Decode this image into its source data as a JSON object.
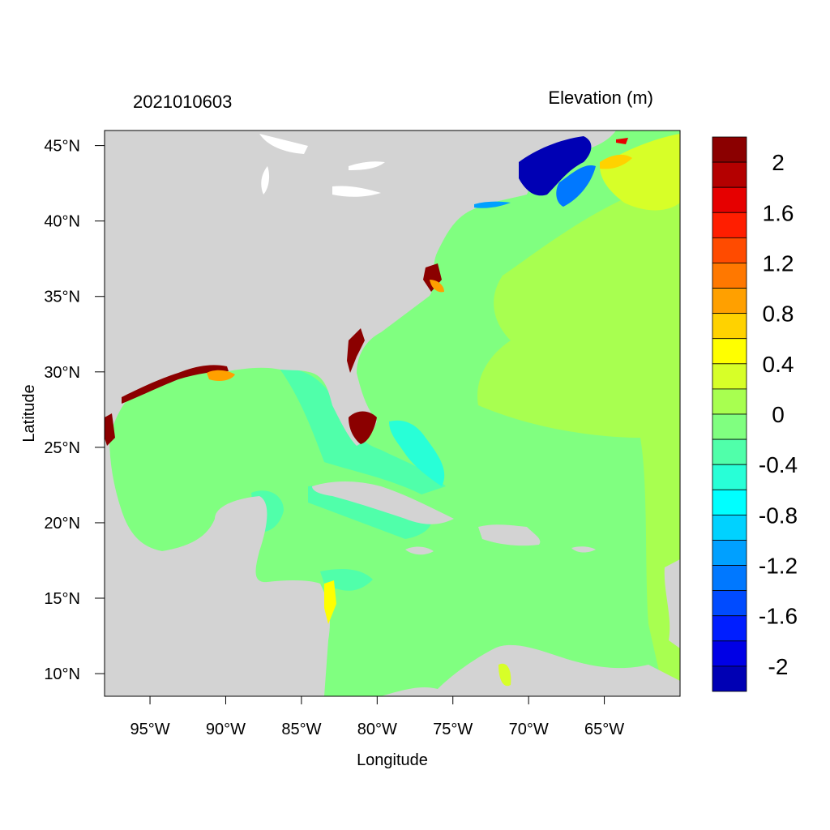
{
  "map": {
    "timestamp": "2021010603",
    "variable_title": "Elevation (m)",
    "xlabel": "Longitude",
    "ylabel": "Latitude",
    "lon_range": [
      -98,
      -60
    ],
    "lat_range": [
      8.5,
      46
    ],
    "x_ticks": [
      "95°W",
      "90°W",
      "85°W",
      "80°W",
      "75°W",
      "70°W",
      "65°W"
    ],
    "y_ticks": [
      "45°N",
      "40°N",
      "35°N",
      "30°N",
      "25°N",
      "20°N",
      "15°N",
      "10°N"
    ],
    "land_color": "#d3d3d3",
    "ocean_base_color": "#80ff80"
  },
  "colorbar": {
    "labels": [
      "2",
      "1.6",
      "1.2",
      "0.8",
      "0.4",
      "0",
      "-0.4",
      "-0.8",
      "-1.2",
      "-1.6",
      "-2"
    ],
    "colors": [
      "#8b0000",
      "#b40000",
      "#e60000",
      "#ff1e00",
      "#ff4b00",
      "#ff7800",
      "#ffa000",
      "#ffd200",
      "#ffff00",
      "#d7ff28",
      "#a8ff50",
      "#80ff80",
      "#50ffaa",
      "#28ffd7",
      "#00ffff",
      "#00d2ff",
      "#00a0ff",
      "#0078ff",
      "#004bff",
      "#001eff",
      "#0000e6",
      "#0000b4"
    ]
  }
}
